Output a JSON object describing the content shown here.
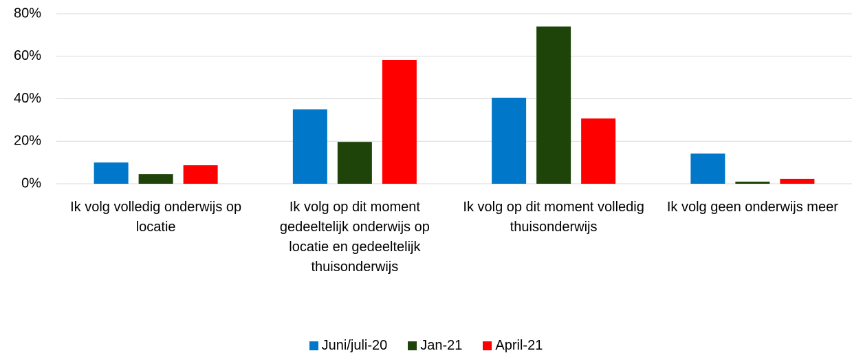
{
  "chart_data": {
    "type": "bar",
    "categories": [
      "Ik volg volledig onderwijs op locatie",
      "Ik volg op dit moment gedeeltelijk onderwijs op locatie en gedeeltelijk thuisonderwijs",
      "Ik volg op dit moment volledig thuisonderwijs",
      "Ik volg geen onderwijs meer"
    ],
    "series": [
      {
        "name": "Juni/juli-20",
        "color": "#0077c8",
        "values": [
          10,
          35,
          40.5,
          14.2
        ]
      },
      {
        "name": "Jan-21",
        "color": "#1e4409",
        "values": [
          4.5,
          19.7,
          74,
          1
        ]
      },
      {
        "name": "April-21",
        "color": "#ff0000",
        "values": [
          8.7,
          58.3,
          30.7,
          2.3
        ]
      }
    ],
    "ylim": [
      0,
      80
    ],
    "yticks": [
      {
        "value": 0,
        "label": "0%"
      },
      {
        "value": 20,
        "label": "20%"
      },
      {
        "value": 40,
        "label": "40%"
      },
      {
        "value": 60,
        "label": "60%"
      },
      {
        "value": 80,
        "label": "80%"
      }
    ],
    "grid": true,
    "legend": "bottom"
  }
}
